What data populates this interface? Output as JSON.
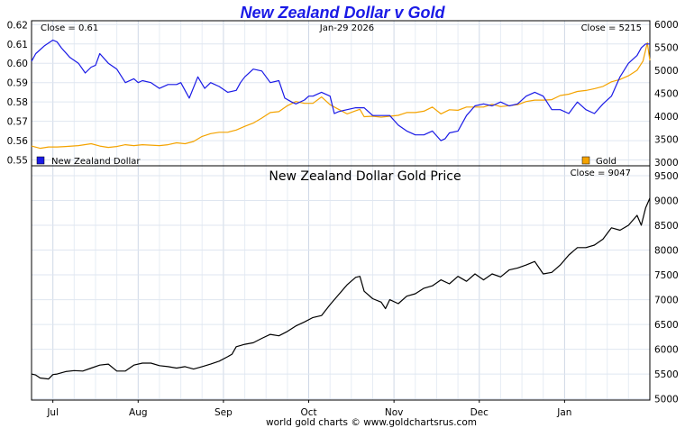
{
  "title": "New Zealand Dollar v Gold",
  "footer": "world gold charts © www.goldchartsrus.com",
  "colors": {
    "nzd": "#1a1ae6",
    "gold": "#f4a300",
    "price": "#000000",
    "title": "#1a1ae6"
  },
  "top_panel": {
    "close_left": "Close = 0.61",
    "date": "Jan-29  2026",
    "close_right": "Close = 5215",
    "legend_left": "New Zealand Dollar",
    "legend_right": "Gold"
  },
  "bottom_panel": {
    "title": "New Zealand Dollar Gold Price",
    "close": "Close = 9047"
  },
  "chart_data": [
    {
      "type": "line",
      "title": "New Zealand Dollar v Gold",
      "x_ticks": [
        "Jul",
        "Aug",
        "Sep",
        "Oct",
        "Nov",
        "Dec",
        "Jan"
      ],
      "x_tick_positions_months": [
        0.0,
        1.0,
        2.0,
        3.0,
        4.0,
        5.0,
        6.0
      ],
      "x_range_months": [
        -0.25,
        7.0
      ],
      "y_left_ticks": [
        "0.62",
        "0.61",
        "0.60",
        "0.59",
        "0.58",
        "0.57",
        "0.56",
        "0.55"
      ],
      "y_left_range": [
        0.547,
        0.622
      ],
      "y_right_ticks": [
        "6000",
        "5500",
        "5000",
        "4500",
        "4000",
        "3500",
        "3000"
      ],
      "y_right_range": [
        2920,
        6080
      ],
      "series": [
        {
          "name": "New Zealand Dollar",
          "axis": "left",
          "x": [
            -0.25,
            -0.2,
            -0.1,
            0.0,
            0.05,
            0.1,
            0.2,
            0.3,
            0.38,
            0.45,
            0.5,
            0.55,
            0.65,
            0.75,
            0.85,
            0.95,
            1.0,
            1.05,
            1.15,
            1.25,
            1.35,
            1.45,
            1.5,
            1.6,
            1.7,
            1.78,
            1.85,
            1.95,
            2.05,
            2.15,
            2.2,
            2.25,
            2.35,
            2.45,
            2.55,
            2.65,
            2.72,
            2.8,
            2.85,
            2.95,
            3.0,
            3.05,
            3.15,
            3.25,
            3.3,
            3.35,
            3.45,
            3.55,
            3.65,
            3.75,
            3.85,
            3.95,
            4.05,
            4.15,
            4.25,
            4.35,
            4.45,
            4.55,
            4.6,
            4.65,
            4.75,
            4.85,
            4.95,
            5.05,
            5.15,
            5.25,
            5.35,
            5.45,
            5.55,
            5.65,
            5.75,
            5.85,
            5.95,
            6.05,
            6.15,
            6.25,
            6.35,
            6.45,
            6.55,
            6.65,
            6.75,
            6.85,
            6.9,
            6.95,
            7.0
          ],
          "values": [
            0.601,
            0.605,
            0.609,
            0.612,
            0.611,
            0.608,
            0.603,
            0.6,
            0.595,
            0.598,
            0.599,
            0.605,
            0.6,
            0.597,
            0.59,
            0.592,
            0.59,
            0.591,
            0.59,
            0.587,
            0.589,
            0.589,
            0.59,
            0.582,
            0.593,
            0.587,
            0.59,
            0.588,
            0.585,
            0.586,
            0.59,
            0.593,
            0.597,
            0.596,
            0.59,
            0.591,
            0.582,
            0.58,
            0.579,
            0.581,
            0.583,
            0.583,
            0.585,
            0.583,
            0.574,
            0.575,
            0.576,
            0.577,
            0.577,
            0.573,
            0.573,
            0.573,
            0.568,
            0.565,
            0.563,
            0.563,
            0.565,
            0.56,
            0.561,
            0.564,
            0.565,
            0.573,
            0.578,
            0.579,
            0.578,
            0.58,
            0.578,
            0.579,
            0.583,
            0.585,
            0.583,
            0.576,
            0.576,
            0.574,
            0.58,
            0.576,
            0.574,
            0.579,
            0.583,
            0.593,
            0.6,
            0.604,
            0.608,
            0.61,
            0.61
          ]
        },
        {
          "name": "Gold",
          "axis": "right",
          "x": [
            -0.25,
            -0.15,
            -0.05,
            0.05,
            0.15,
            0.3,
            0.45,
            0.55,
            0.65,
            0.75,
            0.85,
            0.95,
            1.05,
            1.15,
            1.25,
            1.35,
            1.45,
            1.55,
            1.65,
            1.75,
            1.85,
            1.95,
            2.05,
            2.15,
            2.25,
            2.35,
            2.45,
            2.55,
            2.65,
            2.75,
            2.85,
            2.95,
            3.05,
            3.15,
            3.25,
            3.35,
            3.45,
            3.55,
            3.6,
            3.65,
            3.75,
            3.85,
            3.95,
            4.05,
            4.15,
            4.25,
            4.35,
            4.45,
            4.55,
            4.65,
            4.75,
            4.85,
            4.95,
            5.05,
            5.15,
            5.25,
            5.35,
            5.45,
            5.55,
            5.65,
            5.75,
            5.85,
            5.95,
            6.05,
            6.15,
            6.25,
            6.35,
            6.45,
            6.55,
            6.65,
            6.75,
            6.85,
            6.92,
            6.97,
            7.0
          ],
          "values": [
            3350,
            3300,
            3330,
            3330,
            3340,
            3360,
            3400,
            3350,
            3320,
            3340,
            3380,
            3360,
            3380,
            3370,
            3360,
            3380,
            3420,
            3400,
            3450,
            3560,
            3620,
            3650,
            3650,
            3700,
            3780,
            3850,
            3960,
            4080,
            4100,
            4230,
            4320,
            4280,
            4280,
            4420,
            4250,
            4150,
            4050,
            4120,
            4150,
            3990,
            4000,
            3980,
            4000,
            4020,
            4080,
            4080,
            4110,
            4200,
            4050,
            4140,
            4130,
            4200,
            4200,
            4200,
            4260,
            4210,
            4230,
            4250,
            4320,
            4350,
            4350,
            4360,
            4450,
            4480,
            4540,
            4560,
            4600,
            4650,
            4750,
            4800,
            4880,
            5000,
            5200,
            5600,
            5215
          ]
        }
      ]
    },
    {
      "type": "line",
      "title": "New Zealand Dollar Gold Price",
      "x_ticks": [
        "Jul",
        "Aug",
        "Sep",
        "Oct",
        "Nov",
        "Dec",
        "Jan"
      ],
      "x_tick_positions_months": [
        0.0,
        1.0,
        2.0,
        3.0,
        4.0,
        5.0,
        6.0
      ],
      "x_range_months": [
        -0.25,
        7.0
      ],
      "y_right_ticks": [
        "9500",
        "9000",
        "8500",
        "8000",
        "7500",
        "7000",
        "6500",
        "6000",
        "5500",
        "5000"
      ],
      "y_range": [
        4975,
        9700
      ],
      "series": [
        {
          "name": "New Zealand Dollar Gold Price",
          "x": [
            -0.25,
            -0.2,
            -0.15,
            -0.05,
            0.0,
            0.05,
            0.15,
            0.25,
            0.35,
            0.45,
            0.55,
            0.65,
            0.75,
            0.85,
            0.95,
            1.05,
            1.15,
            1.25,
            1.35,
            1.45,
            1.55,
            1.65,
            1.75,
            1.85,
            1.95,
            2.05,
            2.1,
            2.15,
            2.25,
            2.35,
            2.45,
            2.55,
            2.65,
            2.75,
            2.85,
            2.95,
            3.05,
            3.15,
            3.25,
            3.35,
            3.45,
            3.55,
            3.6,
            3.65,
            3.75,
            3.85,
            3.9,
            3.95,
            4.05,
            4.15,
            4.25,
            4.35,
            4.45,
            4.55,
            4.65,
            4.75,
            4.85,
            4.95,
            5.05,
            5.15,
            5.25,
            5.35,
            5.45,
            5.55,
            5.65,
            5.75,
            5.85,
            5.95,
            6.05,
            6.15,
            6.25,
            6.35,
            6.45,
            6.55,
            6.65,
            6.75,
            6.85,
            6.9,
            6.95,
            7.0
          ],
          "values": [
            5500,
            5480,
            5420,
            5400,
            5490,
            5500,
            5550,
            5570,
            5560,
            5620,
            5680,
            5700,
            5560,
            5560,
            5680,
            5720,
            5720,
            5670,
            5650,
            5620,
            5650,
            5600,
            5650,
            5700,
            5760,
            5850,
            5900,
            6050,
            6100,
            6130,
            6220,
            6300,
            6270,
            6360,
            6470,
            6550,
            6640,
            6680,
            6900,
            7100,
            7300,
            7450,
            7470,
            7170,
            7020,
            6950,
            6820,
            7000,
            6920,
            7070,
            7120,
            7230,
            7280,
            7400,
            7320,
            7470,
            7370,
            7520,
            7400,
            7520,
            7460,
            7600,
            7640,
            7700,
            7770,
            7520,
            7550,
            7700,
            7900,
            8050,
            8050,
            8100,
            8220,
            8450,
            8400,
            8500,
            8700,
            8500,
            8850,
            9047
          ]
        }
      ]
    }
  ]
}
